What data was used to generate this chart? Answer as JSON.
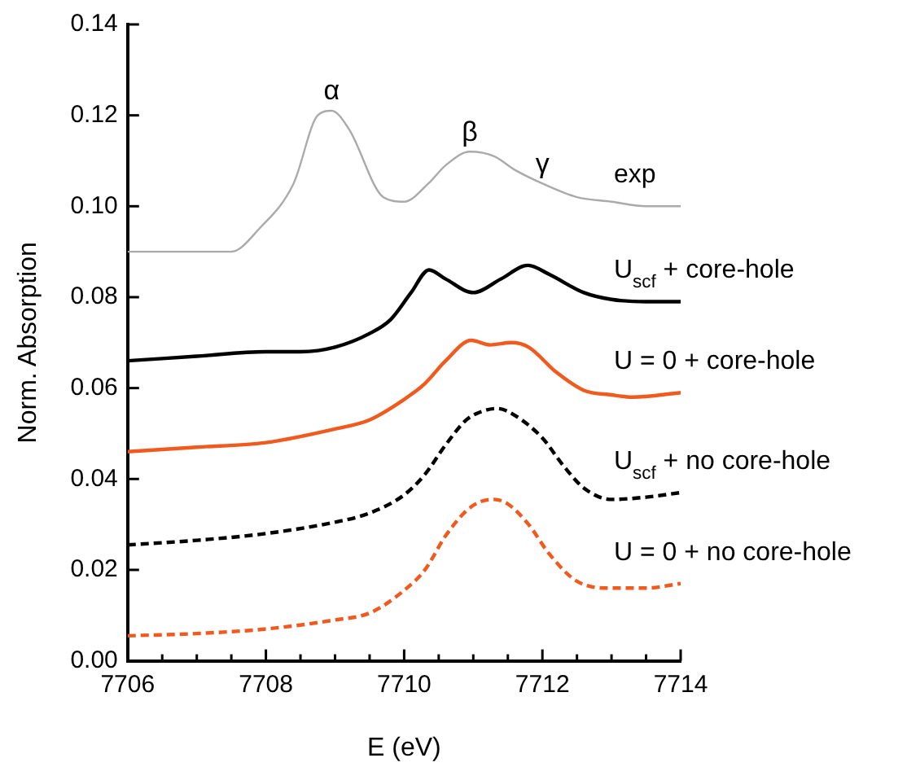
{
  "chart_data": {
    "type": "line",
    "xlabel": "E (eV)",
    "ylabel": "Norm. Absorption",
    "marker": "none",
    "xlim": [
      7706,
      7714
    ],
    "ylim": [
      0,
      0.14
    ],
    "xticks": [
      7706,
      {
        "value": 7706.5,
        "label": null
      },
      {
        "value": 7707,
        "label": null
      },
      {
        "value": 7707.5,
        "label": null
      },
      7708,
      {
        "value": 7708.5,
        "label": null
      },
      {
        "value": 7709,
        "label": null
      },
      {
        "value": 7709.5,
        "label": null
      },
      7710,
      {
        "value": 7710.5,
        "label": null
      },
      {
        "value": 7711,
        "label": null
      },
      {
        "value": 7711.5,
        "label": null
      },
      7712,
      {
        "value": 7712.5,
        "label": null
      },
      {
        "value": 7713,
        "label": null
      },
      {
        "value": 7713.5,
        "label": null
      },
      7714
    ],
    "yticks": [
      {
        "value": 0,
        "label": "0.00"
      },
      0.02,
      0.04,
      0.06,
      0.08,
      {
        "value": 0.1,
        "label": "0.10"
      },
      0.12,
      0.14
    ],
    "series": [
      {
        "name": "exp",
        "color": "#aaaaaa",
        "line_style": "solid",
        "x": [
          7706,
          7707.5,
          7707.9,
          7708.4,
          7708.75,
          7708.95,
          7709.2,
          7709.7,
          7710.0,
          7710.35,
          7710.6,
          7710.95,
          7711.3,
          7711.6,
          7712.0,
          7712.5,
          7713,
          7713.5,
          7714
        ],
        "values": [
          0.09,
          0.09,
          0.095,
          0.105,
          0.12,
          0.121,
          0.117,
          0.102,
          0.101,
          0.105,
          0.109,
          0.112,
          0.111,
          0.108,
          0.105,
          0.102,
          0.101,
          0.1,
          0.1
        ]
      },
      {
        "name": "U$_{scf}$ + core-hole",
        "color": "#000000",
        "line_style": "solid",
        "x": [
          7706,
          7707,
          7708,
          7708.5,
          7709,
          7709.5,
          7709.8,
          7710.1,
          7710.36,
          7710.6,
          7711.0,
          7711.4,
          7711.79,
          7712.1,
          7712.6,
          7713,
          7713.5,
          7714
        ],
        "values": [
          0.066,
          0.067,
          0.068,
          0.068,
          0.069,
          0.072,
          0.075,
          0.081,
          0.086,
          0.084,
          0.081,
          0.084,
          0.087,
          0.085,
          0.081,
          0.0795,
          0.079,
          0.079
        ]
      },
      {
        "name": "U = 0 + core-hole",
        "color": "#f05a1e",
        "line_style": "solid",
        "x": [
          7706,
          7707,
          7708,
          7709,
          7709.5,
          7710,
          7710.3,
          7710.6,
          7710.97,
          7711.25,
          7711.55,
          7711.8,
          7712.2,
          7712.6,
          7713,
          7713.3,
          7714
        ],
        "values": [
          0.046,
          0.047,
          0.048,
          0.051,
          0.053,
          0.0575,
          0.061,
          0.066,
          0.0705,
          0.0695,
          0.07,
          0.069,
          0.0635,
          0.0595,
          0.0585,
          0.058,
          0.059
        ]
      },
      {
        "name": "U$_{scf}$ + no core-hole",
        "color": "#000000",
        "line_style": "dashed",
        "x": [
          7706,
          7707,
          7708,
          7709,
          7709.5,
          7710,
          7710.3,
          7710.6,
          7710.9,
          7711.15,
          7711.35,
          7711.6,
          7712,
          7712.3,
          7712.6,
          7713,
          7713.5,
          7714
        ],
        "values": [
          0.0255,
          0.0265,
          0.028,
          0.0305,
          0.0325,
          0.0365,
          0.041,
          0.0475,
          0.053,
          0.055,
          0.0555,
          0.054,
          0.049,
          0.043,
          0.038,
          0.0355,
          0.036,
          0.037
        ]
      },
      {
        "name": "U = 0 + no core-hole",
        "color": "#f05a1e",
        "line_style": "dashed",
        "x": [
          7706,
          7707,
          7708,
          7709,
          7709.5,
          7710,
          7710.3,
          7710.6,
          7710.9,
          7711.1,
          7711.3,
          7711.5,
          7711.8,
          7712.1,
          7712.5,
          7713,
          7713.5,
          7714
        ],
        "values": [
          0.0055,
          0.006,
          0.007,
          0.009,
          0.0105,
          0.0155,
          0.02,
          0.0275,
          0.033,
          0.035,
          0.0355,
          0.0345,
          0.03,
          0.0235,
          0.0175,
          0.016,
          0.016,
          0.017
        ]
      }
    ],
    "annotations": [
      {
        "text": "α",
        "x": 7708.95,
        "y": 0.121
      },
      {
        "text": "β",
        "x": 7710.95,
        "y": 0.112
      },
      {
        "text": "γ",
        "x": 7712.0,
        "y": 0.105
      }
    ]
  }
}
